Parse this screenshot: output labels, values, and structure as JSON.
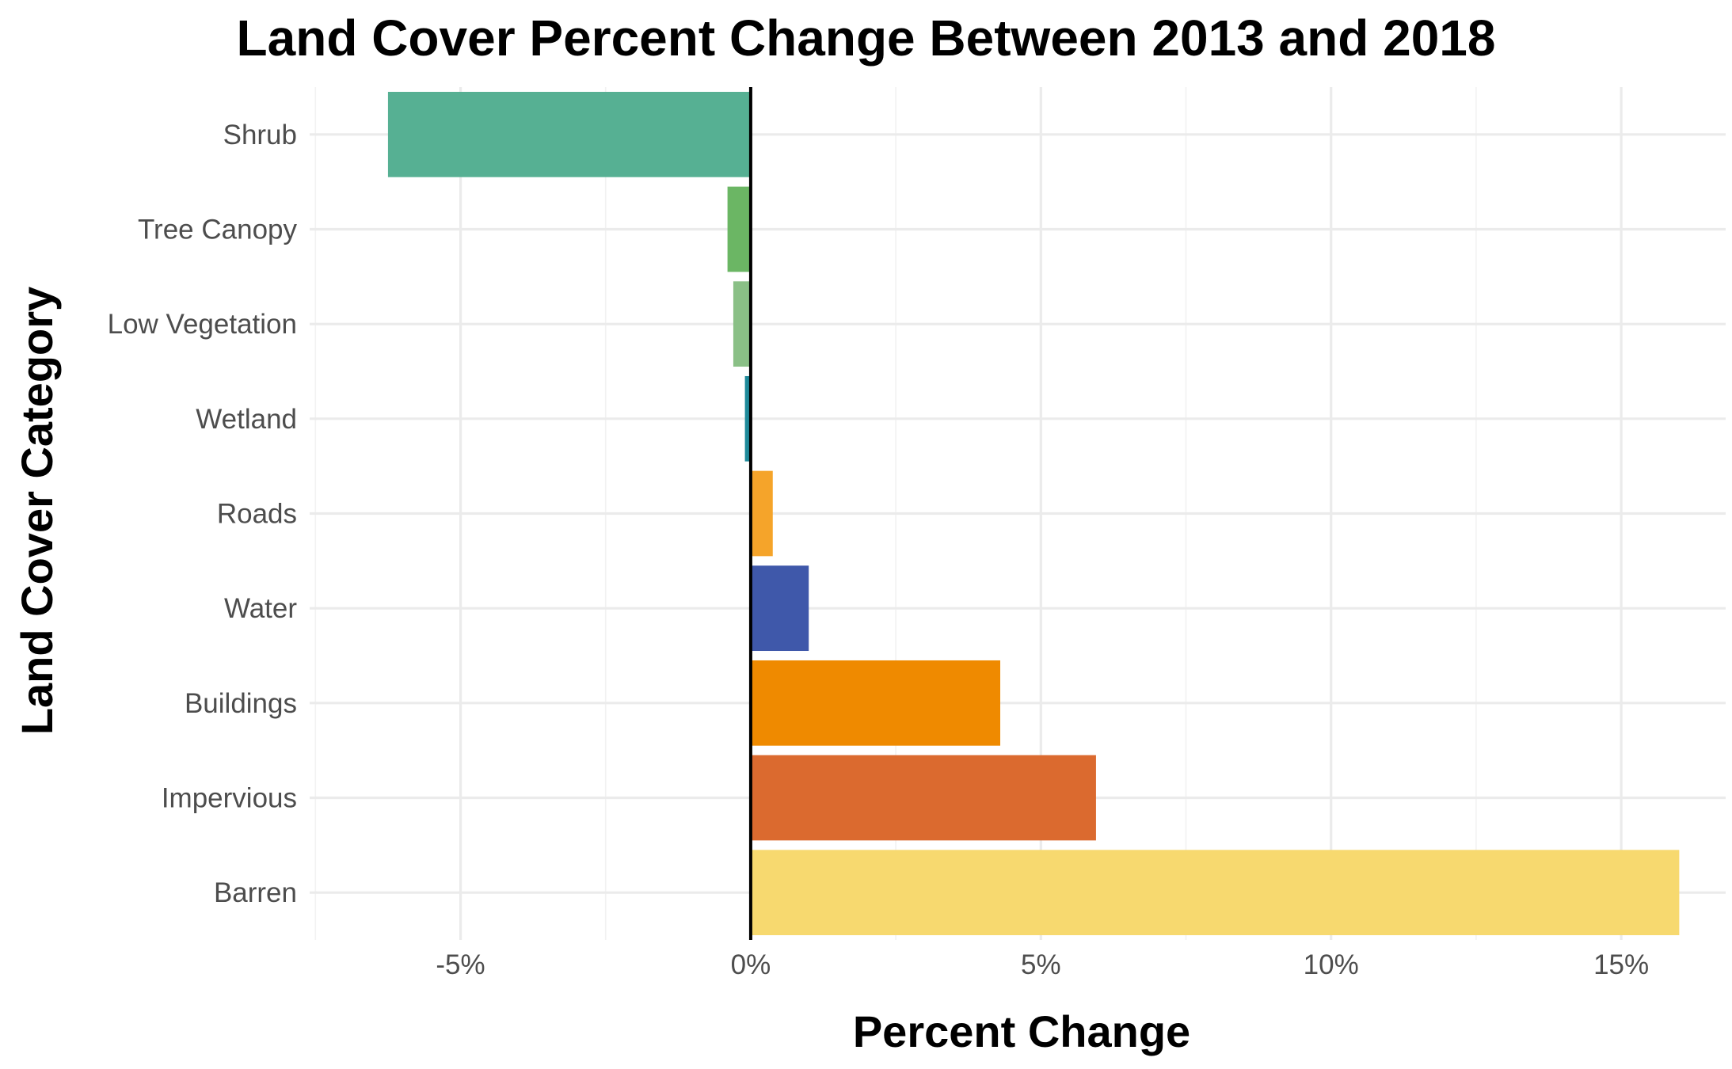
{
  "chart_data": {
    "type": "bar",
    "orientation": "horizontal",
    "title": "Land Cover Percent Change Between 2013 and 2018",
    "xlabel": "Percent Change",
    "ylabel": "Land Cover Category",
    "categories": [
      "Shrub",
      "Tree Canopy",
      "Low Vegetation",
      "Wetland",
      "Roads",
      "Water",
      "Buildings",
      "Impervious",
      "Barren"
    ],
    "values": [
      -6.25,
      -0.4,
      -0.3,
      -0.1,
      0.38,
      1.0,
      4.3,
      5.95,
      16.0
    ],
    "colors": [
      "#56b093",
      "#6bb664",
      "#8ac086",
      "#1f8a9a",
      "#f5a42a",
      "#3f58aa",
      "#ef8a00",
      "#db6a2f",
      "#f7d96f"
    ],
    "xlim": [
      -7.6,
      16.8
    ],
    "x_ticks": [
      -5,
      0,
      5,
      10,
      15
    ],
    "x_tick_labels": [
      "-5%",
      "0%",
      "5%",
      "10%",
      "15%"
    ],
    "grid": true,
    "zero_line": true,
    "legend": "none"
  }
}
